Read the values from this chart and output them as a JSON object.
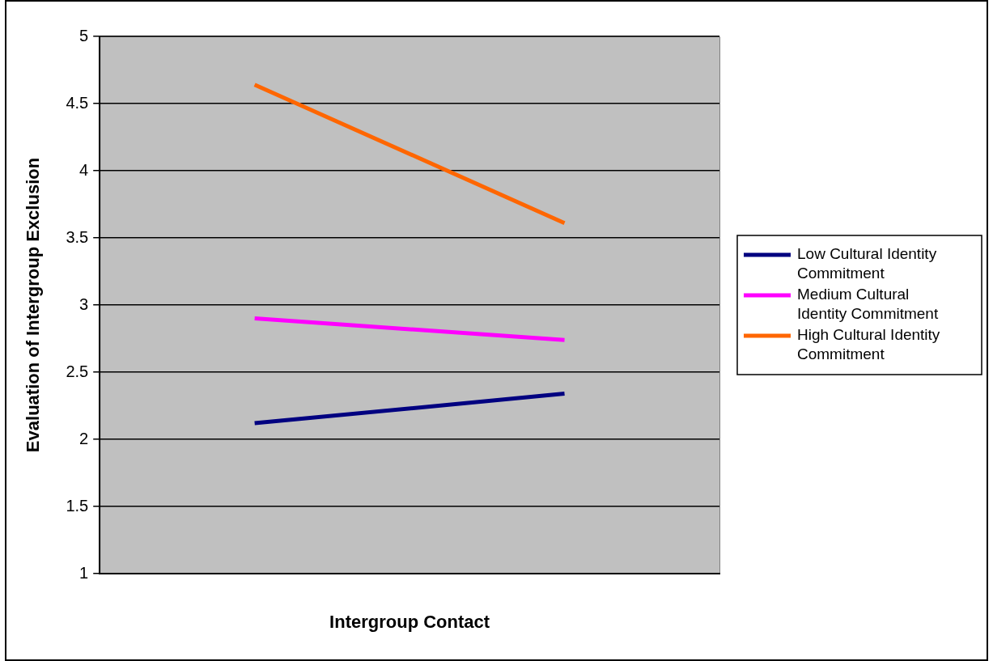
{
  "chart_data": {
    "type": "line",
    "xlabel": "Intergroup Contact",
    "ylabel": "Evaluation of Intergroup Exclusion",
    "categories": [
      null,
      null
    ],
    "series": [
      {
        "name": "Low Cultural Identity Commitment",
        "color": "#000080",
        "values": [
          2.12,
          2.34
        ]
      },
      {
        "name": "Medium Cultural Identity Commitment",
        "color": "#ff00ff",
        "values": [
          2.9,
          2.74
        ]
      },
      {
        "name": "High Cultural Identity Commitment",
        "color": "#ff6600",
        "values": [
          4.64,
          3.61
        ]
      }
    ],
    "ylim": [
      1,
      5
    ],
    "yticks": [
      1,
      1.5,
      2,
      2.5,
      3,
      3.5,
      4,
      4.5,
      5
    ],
    "grid": "y",
    "legend": "right",
    "marker": "none",
    "line_style": "solid"
  }
}
